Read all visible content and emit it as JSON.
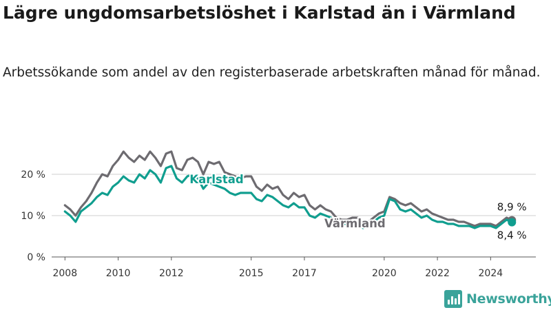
{
  "title": "Lägre ungdomsarbetslöshet i Karlstad än i Värmland",
  "subtitle": "Arbetssökande som andel av den registerbaserade arbetskraften månad för månad.",
  "brand": {
    "name": "Newsworthy",
    "icon": "bar-chart-icon"
  },
  "chart_data": {
    "type": "line",
    "ylim": [
      0,
      28
    ],
    "xlim": [
      2007.5,
      2025.7
    ],
    "y_ticks": [
      {
        "value": 0,
        "label": "0 %"
      },
      {
        "value": 10,
        "label": "10 %"
      },
      {
        "value": 20,
        "label": "20 %"
      }
    ],
    "x_ticks": [
      {
        "value": 2008,
        "label": "2008"
      },
      {
        "value": 2010,
        "label": "2010"
      },
      {
        "value": 2012,
        "label": "2012"
      },
      {
        "value": 2015,
        "label": "2015"
      },
      {
        "value": 2017,
        "label": "2017"
      },
      {
        "value": 2020,
        "label": "2020"
      },
      {
        "value": 2022,
        "label": "2022"
      },
      {
        "value": 2024,
        "label": "2024"
      }
    ],
    "grid": true,
    "series": [
      {
        "name": "Värmland",
        "color": "#6d6b70",
        "end_label": "8,9 %",
        "points": [
          [
            2008.0,
            12.5
          ],
          [
            2008.2,
            11.5
          ],
          [
            2008.4,
            10.0
          ],
          [
            2008.6,
            12.0
          ],
          [
            2008.8,
            13.5
          ],
          [
            2009.0,
            15.5
          ],
          [
            2009.2,
            18.0
          ],
          [
            2009.4,
            20.0
          ],
          [
            2009.6,
            19.5
          ],
          [
            2009.8,
            22.0
          ],
          [
            2010.0,
            23.5
          ],
          [
            2010.2,
            25.5
          ],
          [
            2010.4,
            24.0
          ],
          [
            2010.6,
            23.0
          ],
          [
            2010.8,
            24.5
          ],
          [
            2011.0,
            23.5
          ],
          [
            2011.2,
            25.5
          ],
          [
            2011.4,
            24.0
          ],
          [
            2011.6,
            22.0
          ],
          [
            2011.8,
            25.0
          ],
          [
            2012.0,
            25.5
          ],
          [
            2012.2,
            21.5
          ],
          [
            2012.4,
            21.0
          ],
          [
            2012.6,
            23.5
          ],
          [
            2012.8,
            24.0
          ],
          [
            2013.0,
            23.0
          ],
          [
            2013.2,
            20.0
          ],
          [
            2013.4,
            23.0
          ],
          [
            2013.6,
            22.5
          ],
          [
            2013.8,
            23.0
          ],
          [
            2014.0,
            20.5
          ],
          [
            2014.2,
            20.0
          ],
          [
            2014.4,
            19.5
          ],
          [
            2014.6,
            19.0
          ],
          [
            2014.8,
            19.5
          ],
          [
            2015.0,
            19.5
          ],
          [
            2015.2,
            17.0
          ],
          [
            2015.4,
            16.0
          ],
          [
            2015.6,
            17.5
          ],
          [
            2015.8,
            16.5
          ],
          [
            2016.0,
            17.0
          ],
          [
            2016.2,
            15.0
          ],
          [
            2016.4,
            14.0
          ],
          [
            2016.6,
            15.5
          ],
          [
            2016.8,
            14.5
          ],
          [
            2017.0,
            15.0
          ],
          [
            2017.2,
            12.5
          ],
          [
            2017.4,
            11.5
          ],
          [
            2017.6,
            12.5
          ],
          [
            2017.8,
            11.5
          ],
          [
            2018.0,
            11.0
          ],
          [
            2018.2,
            9.5
          ],
          [
            2018.4,
            9.0
          ],
          [
            2018.6,
            9.0
          ],
          [
            2018.8,
            9.5
          ],
          [
            2019.0,
            9.5
          ],
          [
            2019.2,
            8.5
          ],
          [
            2019.4,
            8.5
          ],
          [
            2019.6,
            9.5
          ],
          [
            2019.8,
            10.5
          ],
          [
            2020.0,
            11.0
          ],
          [
            2020.2,
            14.5
          ],
          [
            2020.4,
            14.0
          ],
          [
            2020.6,
            13.0
          ],
          [
            2020.8,
            12.5
          ],
          [
            2021.0,
            13.0
          ],
          [
            2021.2,
            12.0
          ],
          [
            2021.4,
            11.0
          ],
          [
            2021.6,
            11.5
          ],
          [
            2021.8,
            10.5
          ],
          [
            2022.0,
            10.0
          ],
          [
            2022.2,
            9.5
          ],
          [
            2022.4,
            9.0
          ],
          [
            2022.6,
            9.0
          ],
          [
            2022.8,
            8.5
          ],
          [
            2023.0,
            8.5
          ],
          [
            2023.2,
            8.0
          ],
          [
            2023.4,
            7.5
          ],
          [
            2023.6,
            8.0
          ],
          [
            2023.8,
            8.0
          ],
          [
            2024.0,
            8.0
          ],
          [
            2024.2,
            7.5
          ],
          [
            2024.4,
            8.5
          ],
          [
            2024.6,
            9.5
          ],
          [
            2024.8,
            8.9
          ]
        ]
      },
      {
        "name": "Karlstad",
        "color": "#109e8f",
        "end_label": "8,4 %",
        "points": [
          [
            2008.0,
            11.0
          ],
          [
            2008.2,
            10.0
          ],
          [
            2008.4,
            8.5
          ],
          [
            2008.6,
            11.0
          ],
          [
            2008.8,
            12.0
          ],
          [
            2009.0,
            13.0
          ],
          [
            2009.2,
            14.5
          ],
          [
            2009.4,
            15.5
          ],
          [
            2009.6,
            15.0
          ],
          [
            2009.8,
            17.0
          ],
          [
            2010.0,
            18.0
          ],
          [
            2010.2,
            19.5
          ],
          [
            2010.4,
            18.5
          ],
          [
            2010.6,
            18.0
          ],
          [
            2010.8,
            20.0
          ],
          [
            2011.0,
            19.0
          ],
          [
            2011.2,
            21.0
          ],
          [
            2011.4,
            20.0
          ],
          [
            2011.6,
            18.0
          ],
          [
            2011.8,
            21.5
          ],
          [
            2012.0,
            22.0
          ],
          [
            2012.2,
            19.0
          ],
          [
            2012.4,
            18.0
          ],
          [
            2012.6,
            19.5
          ],
          [
            2012.8,
            20.0
          ],
          [
            2013.0,
            19.0
          ],
          [
            2013.2,
            16.5
          ],
          [
            2013.4,
            18.0
          ],
          [
            2013.6,
            17.5
          ],
          [
            2013.8,
            17.0
          ],
          [
            2014.0,
            16.5
          ],
          [
            2014.2,
            15.5
          ],
          [
            2014.4,
            15.0
          ],
          [
            2014.6,
            15.5
          ],
          [
            2014.8,
            15.5
          ],
          [
            2015.0,
            15.5
          ],
          [
            2015.2,
            14.0
          ],
          [
            2015.4,
            13.5
          ],
          [
            2015.6,
            15.0
          ],
          [
            2015.8,
            14.5
          ],
          [
            2016.0,
            13.5
          ],
          [
            2016.2,
            12.5
          ],
          [
            2016.4,
            12.0
          ],
          [
            2016.6,
            13.0
          ],
          [
            2016.8,
            12.0
          ],
          [
            2017.0,
            12.0
          ],
          [
            2017.2,
            10.0
          ],
          [
            2017.4,
            9.5
          ],
          [
            2017.6,
            10.5
          ],
          [
            2017.8,
            10.0
          ],
          [
            2018.0,
            9.5
          ],
          [
            2018.2,
            8.5
          ],
          [
            2018.4,
            8.0
          ],
          [
            2018.6,
            8.0
          ],
          [
            2018.8,
            8.5
          ],
          [
            2019.0,
            8.0
          ],
          [
            2019.2,
            7.0
          ],
          [
            2019.4,
            7.5
          ],
          [
            2019.6,
            8.5
          ],
          [
            2019.8,
            9.5
          ],
          [
            2020.0,
            10.0
          ],
          [
            2020.2,
            14.0
          ],
          [
            2020.4,
            13.5
          ],
          [
            2020.6,
            11.5
          ],
          [
            2020.8,
            11.0
          ],
          [
            2021.0,
            11.5
          ],
          [
            2021.2,
            10.5
          ],
          [
            2021.4,
            9.5
          ],
          [
            2021.6,
            10.0
          ],
          [
            2021.8,
            9.0
          ],
          [
            2022.0,
            8.5
          ],
          [
            2022.2,
            8.5
          ],
          [
            2022.4,
            8.0
          ],
          [
            2022.6,
            8.0
          ],
          [
            2022.8,
            7.5
          ],
          [
            2023.0,
            7.5
          ],
          [
            2023.2,
            7.5
          ],
          [
            2023.4,
            7.0
          ],
          [
            2023.6,
            7.5
          ],
          [
            2023.8,
            7.5
          ],
          [
            2024.0,
            7.5
          ],
          [
            2024.2,
            7.0
          ],
          [
            2024.4,
            8.0
          ],
          [
            2024.6,
            9.0
          ],
          [
            2024.8,
            8.4
          ]
        ]
      }
    ]
  }
}
